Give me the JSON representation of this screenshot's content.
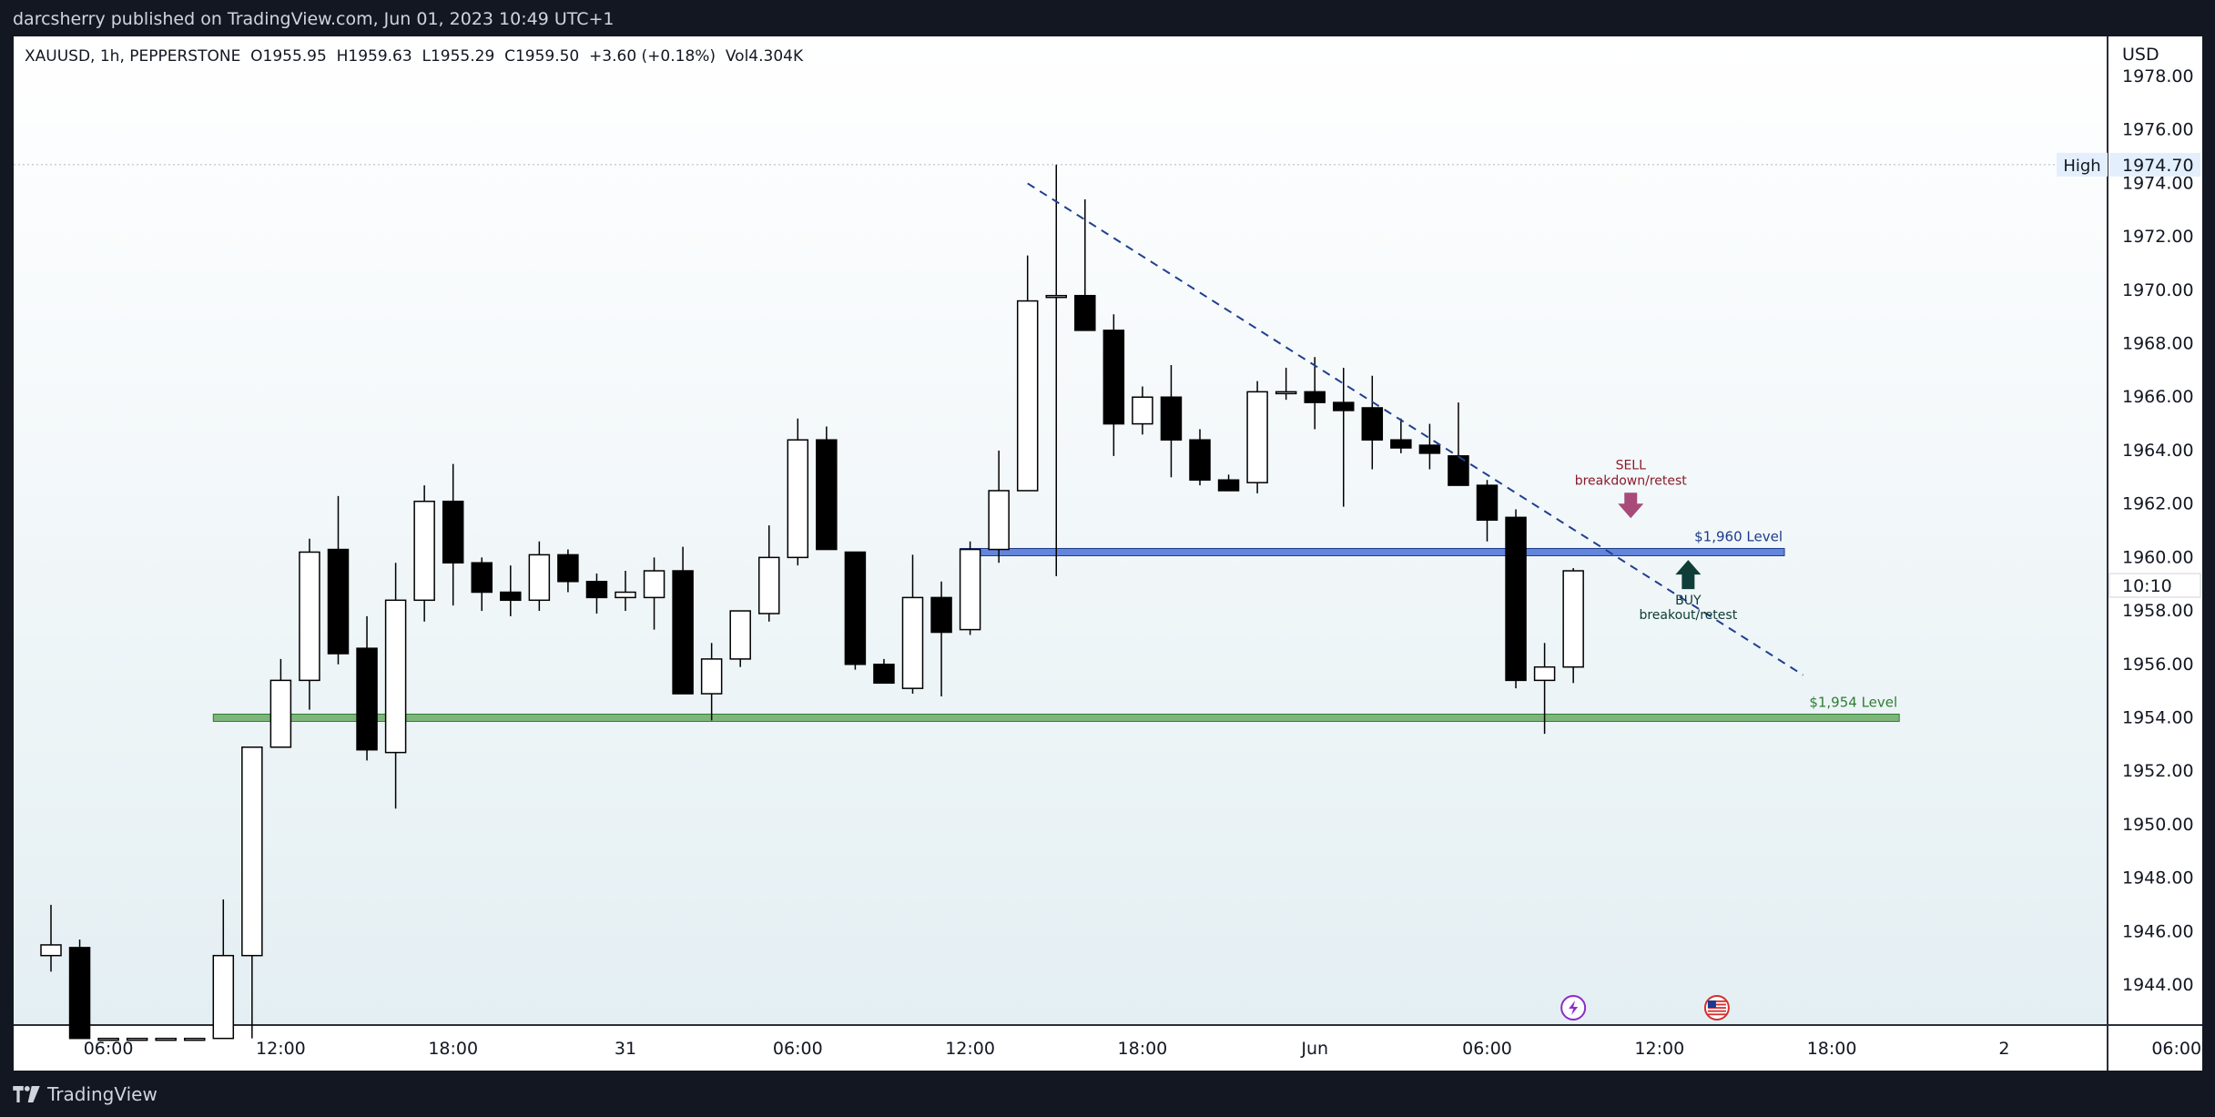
{
  "header": {
    "published": "darcsherry published on TradingView.com, Jun 01, 2023 10:49 UTC+1"
  },
  "footer": {
    "brand": "TradingView"
  },
  "chart_data": {
    "type": "candlestick",
    "symbol_line": "XAUUSD, 1h, PEPPERSTONE  O1955.95  H1959.63  L1955.29  C1959.50  +3.60 (+0.18%)  Vol4.304K",
    "currency": "USD",
    "ylim": [
      1942.5,
      1979.5
    ],
    "y_ticks": [
      "1978.00",
      "1976.00",
      "1974.00",
      "1972.00",
      "1970.00",
      "1968.00",
      "1966.00",
      "1964.00",
      "1962.00",
      "1960.00",
      "1958.00",
      "1956.00",
      "1954.00",
      "1952.00",
      "1950.00",
      "1948.00",
      "1946.00",
      "1944.00"
    ],
    "x_ticks": [
      {
        "label": "06:00",
        "i": 2
      },
      {
        "label": "12:00",
        "i": 8
      },
      {
        "label": "18:00",
        "i": 14
      },
      {
        "label": "31",
        "i": 20
      },
      {
        "label": "06:00",
        "i": 26
      },
      {
        "label": "12:00",
        "i": 32
      },
      {
        "label": "18:00",
        "i": 38
      },
      {
        "label": "Jun",
        "i": 44
      },
      {
        "label": "06:00",
        "i": 50
      },
      {
        "label": "12:00",
        "i": 56
      },
      {
        "label": "18:00",
        "i": 62
      },
      {
        "label": "2",
        "i": 68
      },
      {
        "label": "06:00",
        "i": 74
      }
    ],
    "candles": [
      {
        "o": 1945.1,
        "h": 1947.0,
        "l": 1944.5,
        "c": 1945.5
      },
      {
        "o": 1945.4,
        "h": 1945.7,
        "l": 1942.0,
        "c": 1942.0
      },
      {
        "o": 1942.0,
        "h": 1942.0,
        "l": 1942.0,
        "c": 1942.0
      },
      {
        "o": 1942.0,
        "h": 1942.0,
        "l": 1942.0,
        "c": 1942.0
      },
      {
        "o": 1942.0,
        "h": 1942.0,
        "l": 1942.0,
        "c": 1942.0
      },
      {
        "o": 1942.0,
        "h": 1942.0,
        "l": 1942.0,
        "c": 1942.0
      },
      {
        "o": 1942.0,
        "h": 1947.2,
        "l": 1942.0,
        "c": 1945.1
      },
      {
        "o": 1945.1,
        "h": 1952.9,
        "l": 1942.0,
        "c": 1952.9
      },
      {
        "o": 1952.9,
        "h": 1956.2,
        "l": 1952.9,
        "c": 1955.4
      },
      {
        "o": 1955.4,
        "h": 1960.7,
        "l": 1954.3,
        "c": 1960.2
      },
      {
        "o": 1960.3,
        "h": 1962.3,
        "l": 1956.0,
        "c": 1956.4
      },
      {
        "o": 1956.6,
        "h": 1957.8,
        "l": 1952.4,
        "c": 1952.8
      },
      {
        "o": 1952.7,
        "h": 1959.8,
        "l": 1950.6,
        "c": 1958.4
      },
      {
        "o": 1958.4,
        "h": 1962.7,
        "l": 1957.6,
        "c": 1962.1
      },
      {
        "o": 1962.1,
        "h": 1963.5,
        "l": 1958.2,
        "c": 1959.8
      },
      {
        "o": 1959.8,
        "h": 1960.0,
        "l": 1958.0,
        "c": 1958.7
      },
      {
        "o": 1958.7,
        "h": 1959.7,
        "l": 1957.8,
        "c": 1958.4
      },
      {
        "o": 1958.4,
        "h": 1960.6,
        "l": 1958.0,
        "c": 1960.1
      },
      {
        "o": 1960.1,
        "h": 1960.3,
        "l": 1958.7,
        "c": 1959.1
      },
      {
        "o": 1959.1,
        "h": 1959.4,
        "l": 1957.9,
        "c": 1958.5
      },
      {
        "o": 1958.5,
        "h": 1959.5,
        "l": 1958.0,
        "c": 1958.7
      },
      {
        "o": 1958.5,
        "h": 1960.0,
        "l": 1957.3,
        "c": 1959.5
      },
      {
        "o": 1959.5,
        "h": 1960.4,
        "l": 1954.9,
        "c": 1954.9
      },
      {
        "o": 1954.9,
        "h": 1956.8,
        "l": 1953.9,
        "c": 1956.2
      },
      {
        "o": 1956.2,
        "h": 1958.0,
        "l": 1955.9,
        "c": 1958.0
      },
      {
        "o": 1957.9,
        "h": 1961.2,
        "l": 1957.6,
        "c": 1960.0
      },
      {
        "o": 1960.0,
        "h": 1965.2,
        "l": 1959.7,
        "c": 1964.4
      },
      {
        "o": 1964.4,
        "h": 1964.9,
        "l": 1960.3,
        "c": 1960.3
      },
      {
        "o": 1960.2,
        "h": 1960.2,
        "l": 1955.8,
        "c": 1956.0
      },
      {
        "o": 1956.0,
        "h": 1956.2,
        "l": 1955.3,
        "c": 1955.3
      },
      {
        "o": 1955.1,
        "h": 1960.1,
        "l": 1954.9,
        "c": 1958.5
      },
      {
        "o": 1958.5,
        "h": 1959.1,
        "l": 1954.8,
        "c": 1957.2
      },
      {
        "o": 1957.3,
        "h": 1960.6,
        "l": 1957.1,
        "c": 1960.3
      },
      {
        "o": 1960.3,
        "h": 1964.0,
        "l": 1959.8,
        "c": 1962.5
      },
      {
        "o": 1962.5,
        "h": 1971.3,
        "l": 1962.5,
        "c": 1969.6
      },
      {
        "o": 1969.8,
        "h": 1974.7,
        "l": 1959.3,
        "c": 1969.8
      },
      {
        "o": 1969.8,
        "h": 1973.4,
        "l": 1968.5,
        "c": 1968.5
      },
      {
        "o": 1968.5,
        "h": 1969.1,
        "l": 1963.8,
        "c": 1965.0
      },
      {
        "o": 1965.0,
        "h": 1966.4,
        "l": 1964.6,
        "c": 1966.0
      },
      {
        "o": 1966.0,
        "h": 1967.2,
        "l": 1963.0,
        "c": 1964.4
      },
      {
        "o": 1964.4,
        "h": 1964.8,
        "l": 1962.7,
        "c": 1962.9
      },
      {
        "o": 1962.9,
        "h": 1963.1,
        "l": 1962.5,
        "c": 1962.5
      },
      {
        "o": 1962.8,
        "h": 1966.6,
        "l": 1962.4,
        "c": 1966.2
      },
      {
        "o": 1966.2,
        "h": 1967.1,
        "l": 1965.9,
        "c": 1966.2
      },
      {
        "o": 1966.2,
        "h": 1967.5,
        "l": 1964.8,
        "c": 1965.8
      },
      {
        "o": 1965.8,
        "h": 1967.1,
        "l": 1961.9,
        "c": 1965.5
      },
      {
        "o": 1965.6,
        "h": 1966.8,
        "l": 1963.3,
        "c": 1964.4
      },
      {
        "o": 1964.4,
        "h": 1965.2,
        "l": 1963.9,
        "c": 1964.1
      },
      {
        "o": 1964.2,
        "h": 1965.0,
        "l": 1963.3,
        "c": 1963.9
      },
      {
        "o": 1963.8,
        "h": 1965.8,
        "l": 1962.8,
        "c": 1962.7
      },
      {
        "o": 1962.7,
        "h": 1962.9,
        "l": 1960.6,
        "c": 1961.4
      },
      {
        "o": 1961.5,
        "h": 1961.8,
        "l": 1955.1,
        "c": 1955.4
      },
      {
        "o": 1955.4,
        "h": 1956.8,
        "l": 1953.4,
        "c": 1955.9
      },
      {
        "o": 1955.9,
        "h": 1959.6,
        "l": 1955.3,
        "c": 1959.5
      }
    ],
    "horizontal_levels": [
      {
        "label": "$1,960 Level",
        "value": 1960.2,
        "from_i": 32,
        "to_i": 60,
        "color": "#4a72d8",
        "label_color": "#1e3a8a"
      },
      {
        "label": "$1,954 Level",
        "value": 1954.0,
        "from_i": 6,
        "to_i": 64,
        "color": "#6aaa64",
        "label_color": "#2e7d32"
      }
    ],
    "trendline": {
      "style": "dashed",
      "color": "#1f3f8f",
      "from": {
        "i": 34,
        "v": 1974.0
      },
      "to": {
        "i": 61,
        "v": 1955.6
      }
    },
    "annotations": [
      {
        "title": "SELL",
        "subtitle": "breakdown/retest",
        "color": "#8b1a2b",
        "arrow_color": "#a84a7a",
        "direction": "down",
        "i": 55,
        "v": 1961.4
      },
      {
        "title": "BUY",
        "subtitle": "breakout/retest",
        "color": "#0b3b33",
        "arrow_color": "#0f3d38",
        "direction": "up",
        "i": 57,
        "v": 1959.7
      }
    ],
    "high_marker": {
      "label": "High",
      "value": 1974.7,
      "text": "1974.70"
    },
    "price_marker": {
      "text": "10:10",
      "value": 1959.5
    },
    "event_icons": [
      {
        "name": "lightning-event-icon",
        "i": 53,
        "color": "#8e2bc7"
      },
      {
        "name": "us-flag-event-icon",
        "i": 58,
        "color": "#d32f2f"
      }
    ]
  }
}
